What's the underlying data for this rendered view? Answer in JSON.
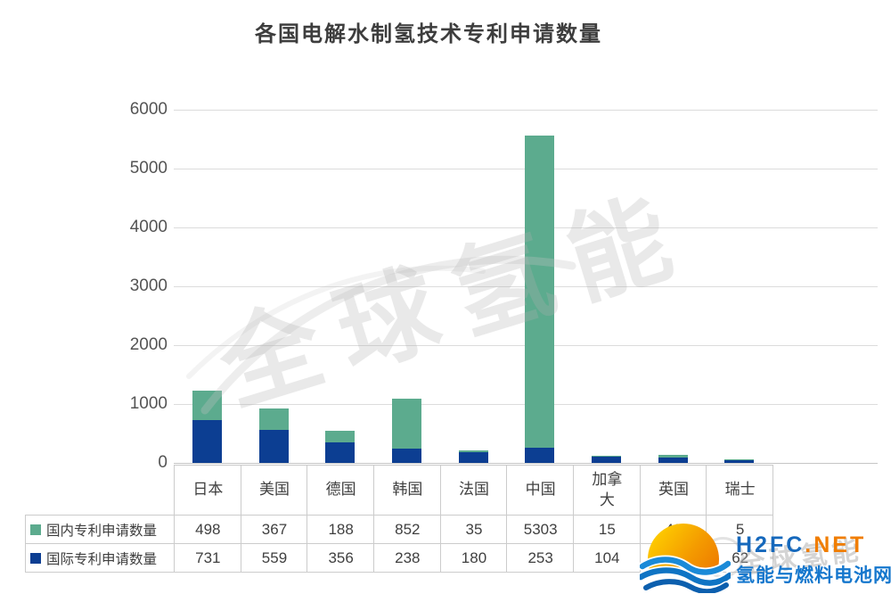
{
  "chart_data": {
    "type": "bar",
    "stacked": true,
    "title": "各国电解水制氢技术专利申请数量",
    "categories": [
      "日本",
      "美国",
      "德国",
      "韩国",
      "法国",
      "中国",
      "加拿大",
      "英国",
      "瑞士"
    ],
    "series": [
      {
        "name": "国内专利申请数量",
        "color": "#5CAB8E",
        "values": [
          498,
          367,
          188,
          852,
          35,
          5303,
          15,
          48,
          5
        ]
      },
      {
        "name": "国际专利申请数量",
        "color": "#0C3E92",
        "values": [
          731,
          559,
          356,
          238,
          180,
          253,
          104,
          91,
          62
        ]
      }
    ],
    "stack_order_bottom_to_top": [
      "国际专利申请数量",
      "国内专利申请数量"
    ],
    "xlabel": "",
    "ylabel": "",
    "ylim": [
      0,
      6000
    ],
    "yticks": [
      0,
      1000,
      2000,
      3000,
      4000,
      5000,
      6000
    ],
    "grid": true,
    "legend_position": "table-rows-left"
  },
  "watermark": {
    "large": "全球氢能",
    "small": "全球氢能"
  },
  "logo": {
    "brand": "H2FC",
    "suffix": ".NET",
    "tagline": "氢能与燃料电池网",
    "brand_color": "#1568BC",
    "suffix_color": "#F07D00",
    "tagline_color": "#1577CD"
  }
}
